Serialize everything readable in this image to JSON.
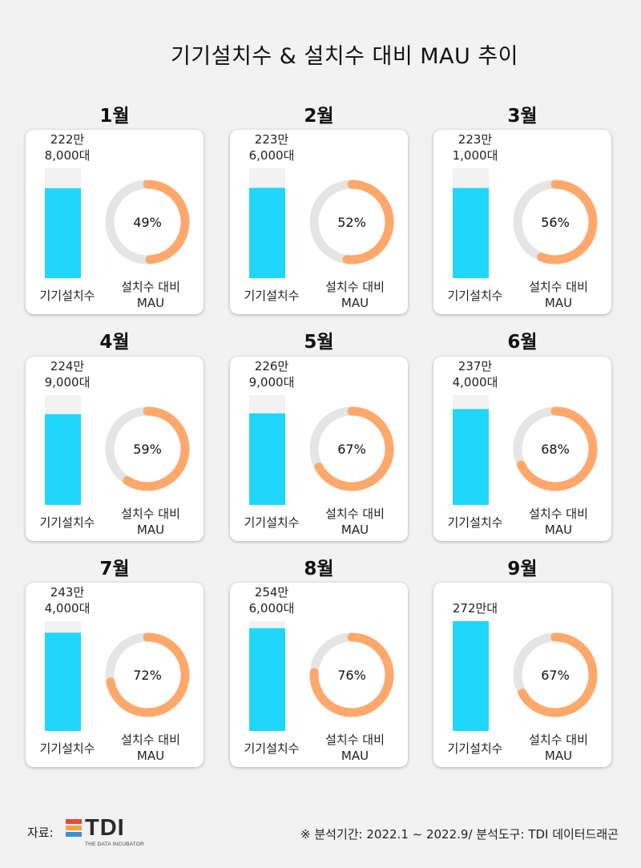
{
  "title": "기기설치수 & 설치수 대비 MAU 추이",
  "colors": {
    "bar": "#1fd6fb",
    "bar_track": "#f2f2f2",
    "donut": "#ffa86b",
    "donut_track": "#e5e5e5"
  },
  "bar_caption": "기기설치수",
  "donut_caption": "설치수 대비\nMAU",
  "chart_data": {
    "type": "bar",
    "title": "기기설치수 & 설치수 대비 MAU 추이",
    "categories": [
      "1월",
      "2월",
      "3월",
      "4월",
      "5월",
      "6월",
      "7월",
      "8월",
      "9월"
    ],
    "series": [
      {
        "name": "기기설치수",
        "values": [
          2228000,
          2236000,
          2231000,
          2249000,
          2269000,
          2374000,
          2434000,
          2546000,
          2720000
        ],
        "labels": [
          "222만\n8,000대",
          "223만\n6,000대",
          "223만\n1,000대",
          "224만\n9,000대",
          "226만\n9,000대",
          "237만\n4,000대",
          "243만\n4,000대",
          "254만\n6,000대",
          "272만대"
        ]
      },
      {
        "name": "설치수 대비 MAU",
        "values": [
          49,
          52,
          56,
          59,
          67,
          68,
          72,
          76,
          67
        ],
        "labels": [
          "49%",
          "52%",
          "56%",
          "59%",
          "67%",
          "68%",
          "72%",
          "76%",
          "67%"
        ]
      }
    ],
    "bar_ylim": [
      0,
      2720000
    ],
    "donut_range": [
      0,
      100
    ]
  },
  "footer": {
    "source_label": "자료:",
    "logo_text": "TDI",
    "logo_sub": "THE DATA INCUBATOR",
    "note": "※ 분석기간: 2022.1 ~ 2022.9/ 분석도구: TDI 데이터드래곤"
  }
}
